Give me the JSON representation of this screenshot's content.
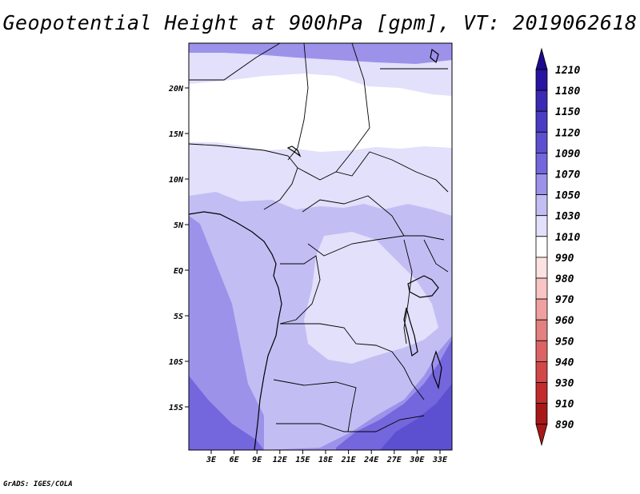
{
  "title": "Geopotential Height at 900hPa [gpm], VT: 2019062618",
  "credit": "GrADS: IGES/COLA",
  "colors": {
    "h1210": "#1e0a8c",
    "h1180": "#2814a0",
    "h1150": "#3a2ab4",
    "h1120": "#4a3cc4",
    "h1090": "#5c50d0",
    "h1070": "#7466dc",
    "h1050": "#9c92ea",
    "h1030": "#c2bef4",
    "h1010": "#e2e0fa",
    "h990": "#ffffff",
    "h980": "#fde2e2",
    "h970": "#f8c4c4",
    "h960": "#f0a0a0",
    "h950": "#e48080",
    "h940": "#dc6464",
    "h930": "#d24848",
    "h910": "#c22c2c",
    "h890": "#a81818"
  },
  "map": {
    "lon_ticks": [
      "3E",
      "6E",
      "9E",
      "12E",
      "15E",
      "18E",
      "21E",
      "24E",
      "27E",
      "30E",
      "33E"
    ],
    "lat_ticks": [
      "20N",
      "15N",
      "10N",
      "5N",
      "EQ",
      "5S",
      "10S",
      "15S"
    ]
  },
  "colorbar": {
    "labels": [
      "1210",
      "1180",
      "1150",
      "1120",
      "1090",
      "1070",
      "1050",
      "1030",
      "1010",
      "990",
      "980",
      "970",
      "960",
      "950",
      "940",
      "930",
      "910",
      "890"
    ],
    "colors": [
      "#1e0a8c",
      "#2814a0",
      "#3a2ab4",
      "#4a3cc4",
      "#5c50d0",
      "#7466dc",
      "#9c92ea",
      "#c2bef4",
      "#e2e0fa",
      "#ffffff",
      "#fde2e2",
      "#f8c4c4",
      "#f0a0a0",
      "#e48080",
      "#dc6464",
      "#d24848",
      "#c22c2c",
      "#a81818"
    ]
  }
}
